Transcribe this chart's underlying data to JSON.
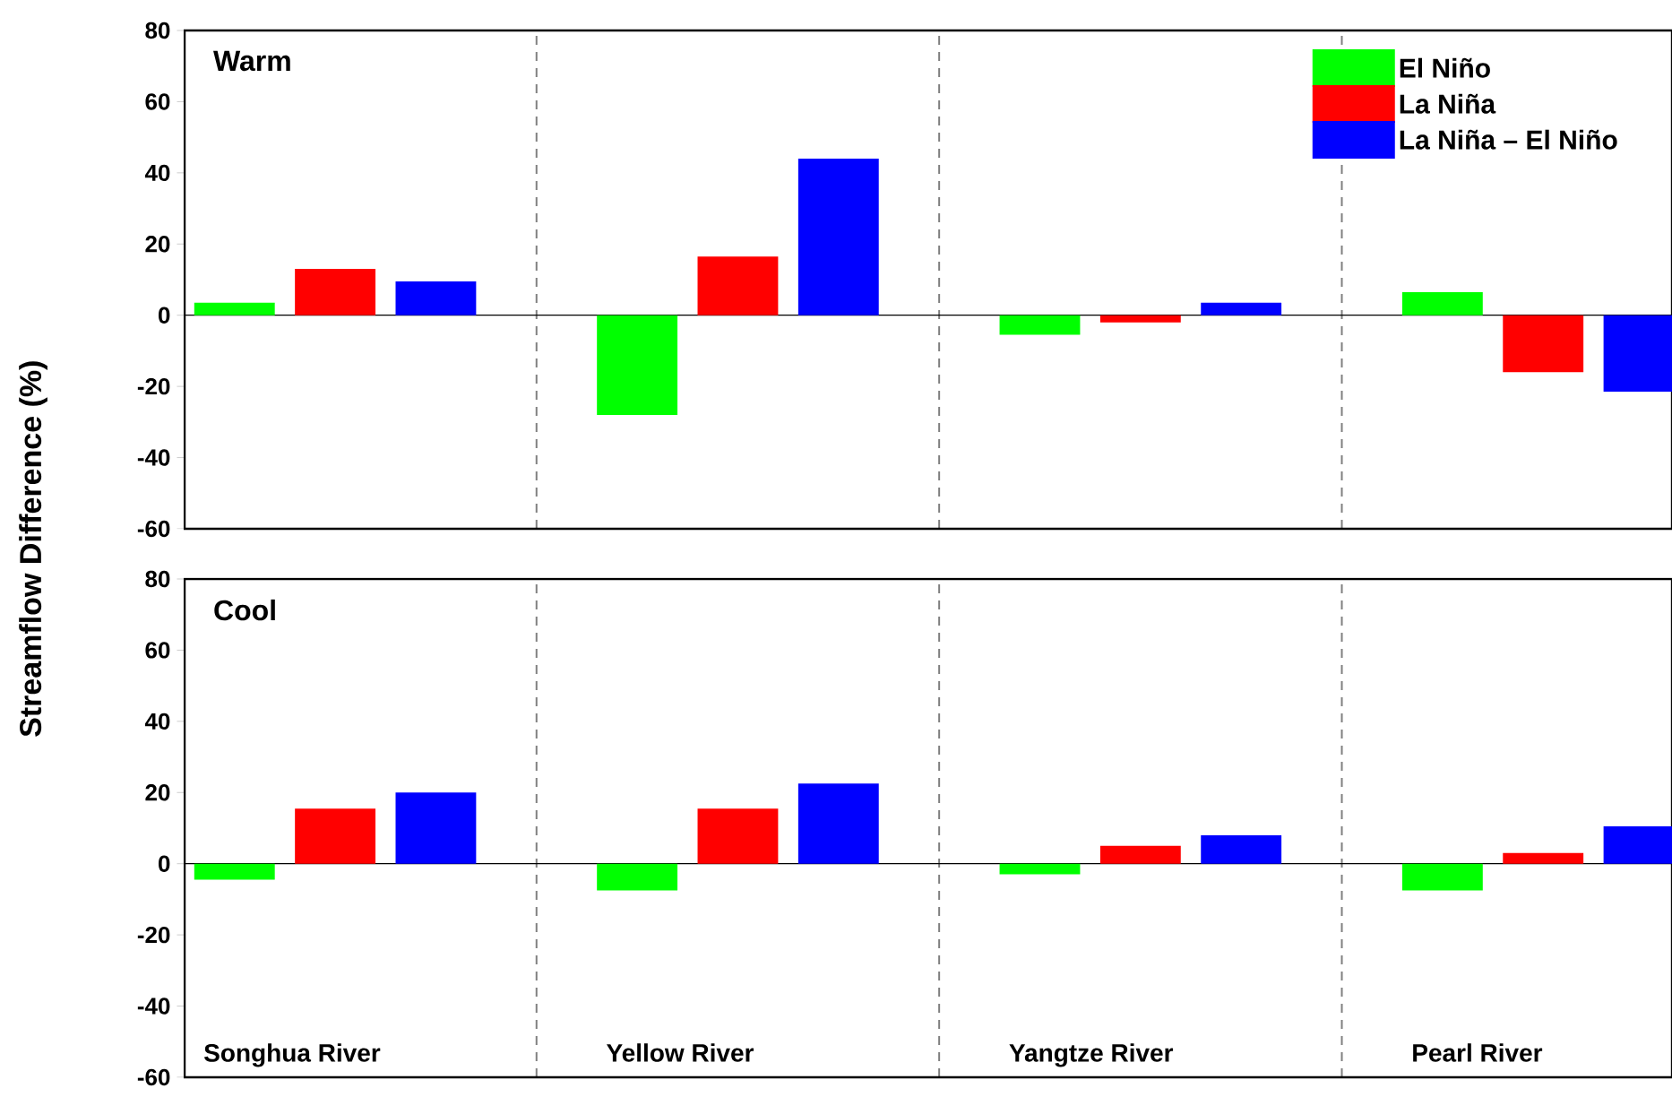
{
  "chart_data": [
    {
      "type": "bar",
      "title": "Warm",
      "ylabel": "Streamflow Difference (%)",
      "categories": [
        null,
        null,
        null,
        null
      ],
      "ylim": [
        -60,
        80
      ],
      "yticks": [
        -60,
        -40,
        -20,
        0,
        20,
        40,
        60,
        80
      ],
      "grid": "x",
      "legend": "top right",
      "tick_labels": "y",
      "ref_lines": [
        {
          "axis": "y",
          "value": 0,
          "color": "#000000"
        }
      ],
      "series": [
        {
          "name": "El Niño",
          "color": "#00ff00",
          "values": [
            3.5,
            -28,
            -5.5,
            6.5
          ]
        },
        {
          "name": "La Niña",
          "color": "#ff0000",
          "values": [
            13,
            16.5,
            -2,
            -16
          ]
        },
        {
          "name": "La Niña – El Niño",
          "color": "#0000ff",
          "values": [
            9.5,
            44,
            3.5,
            -21.5
          ]
        }
      ]
    },
    {
      "type": "bar",
      "title": "Cool",
      "ref_lines": [
        {
          "axis": "y",
          "value": 0,
          "color": "#000000"
        }
      ],
      "categories": [
        "Songhua River",
        "Yellow River",
        "Yangtze River",
        "Pearl River"
      ],
      "ylim": [
        -60,
        80
      ],
      "yticks": [
        -60,
        -40,
        -20,
        0,
        20,
        40,
        60,
        80
      ],
      "grid": "x",
      "series": [
        {
          "color": "#00ff00",
          "values": [
            -4.5,
            -7.5,
            -3,
            -7.5
          ]
        },
        {
          "color": "#ff0000",
          "values": [
            15.5,
            15.5,
            5,
            3
          ]
        },
        {
          "color": "#0000ff",
          "values": [
            20,
            22.5,
            8,
            10.5
          ]
        }
      ]
    }
  ]
}
